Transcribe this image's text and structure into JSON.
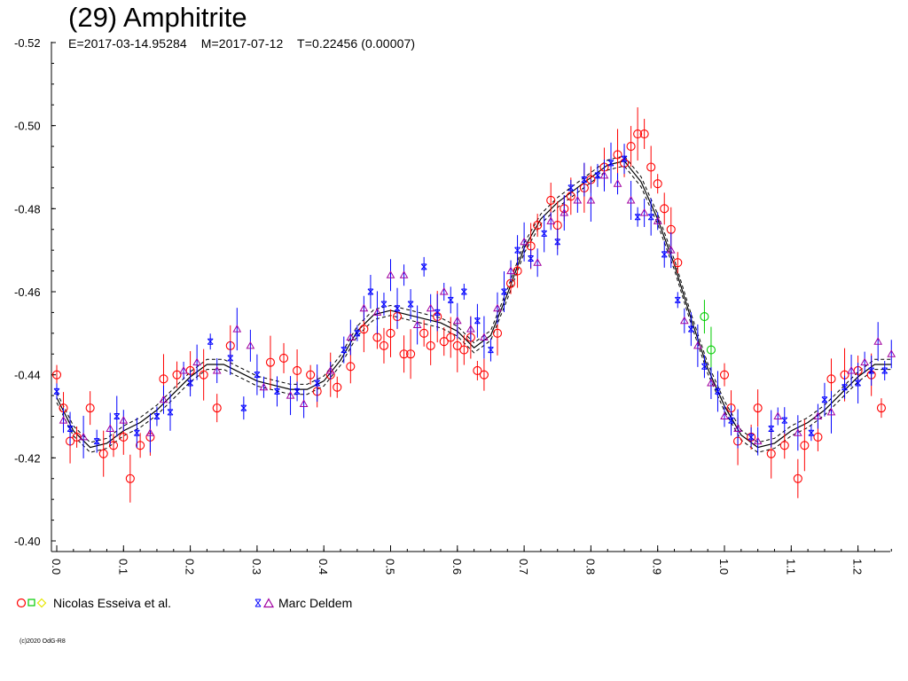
{
  "header": {
    "title": "(29) Amphitrite",
    "subtitle": "E=2017-03-14.95284    M=2017-07-12    T=0.22456 (0.00007)"
  },
  "footer": {
    "copyright": "(c)2020 OdG-R8"
  },
  "colors": {
    "esseiva_red": "#ff0000",
    "esseiva_green": "#00cc00",
    "esseiva_yellow": "#ffff00",
    "deldem_blue": "#0000ff",
    "deldem_purple": "#a000a0",
    "fit_line": "#000000"
  },
  "chart_data": {
    "type": "scatter",
    "xlim": [
      0.0,
      1.25
    ],
    "ylim": [
      -0.52,
      -0.4
    ],
    "x_ticks": [
      "0.0",
      "0.1",
      "0.2",
      "0.3",
      "0.4",
      "0.5",
      "0.6",
      "0.7",
      "0.8",
      "0.9",
      "1.0",
      "1.1",
      "1.2"
    ],
    "y_ticks": [
      "-0.52",
      "-0.50",
      "-0.48",
      "-0.46",
      "-0.44",
      "-0.42",
      "-0.40"
    ],
    "y_inverted": true,
    "grid": false,
    "legend_placement": "bottom",
    "fit_curve": {
      "x": [
        0.0,
        0.025,
        0.05,
        0.075,
        0.1,
        0.125,
        0.15,
        0.175,
        0.2,
        0.225,
        0.25,
        0.275,
        0.3,
        0.325,
        0.35,
        0.375,
        0.4,
        0.425,
        0.45,
        0.475,
        0.5,
        0.525,
        0.55,
        0.575,
        0.6,
        0.625,
        0.65,
        0.675,
        0.7,
        0.725,
        0.75,
        0.775,
        0.8,
        0.825,
        0.85,
        0.875,
        0.9,
        0.925,
        0.95,
        0.975,
        1.0,
        1.025,
        1.05,
        1.075,
        1.1,
        1.125,
        1.15,
        1.175,
        1.2,
        1.225,
        1.25
      ],
      "y": [
        -0.4345,
        -0.4265,
        -0.4225,
        -0.4235,
        -0.4265,
        -0.4285,
        -0.4315,
        -0.4355,
        -0.4395,
        -0.4425,
        -0.4425,
        -0.4405,
        -0.4385,
        -0.4375,
        -0.4365,
        -0.4365,
        -0.4385,
        -0.4435,
        -0.4505,
        -0.4545,
        -0.4555,
        -0.4545,
        -0.4535,
        -0.4525,
        -0.4505,
        -0.4465,
        -0.4495,
        -0.4595,
        -0.4705,
        -0.4775,
        -0.4815,
        -0.4845,
        -0.4875,
        -0.4905,
        -0.4915,
        -0.4865,
        -0.4775,
        -0.4665,
        -0.4535,
        -0.4415,
        -0.4325,
        -0.4255,
        -0.4225,
        -0.4235,
        -0.4265,
        -0.4285,
        -0.4315,
        -0.4355,
        -0.4395,
        -0.4425,
        -0.4425
      ]
    },
    "series": [
      {
        "name": "Nicolas Esseiva et al.",
        "marker": "circle",
        "points": [
          [
            0.0,
            -0.44
          ],
          [
            0.01,
            -0.432
          ],
          [
            0.02,
            -0.424
          ],
          [
            0.03,
            -0.425
          ],
          [
            0.05,
            -0.432
          ],
          [
            0.07,
            -0.421
          ],
          [
            0.085,
            -0.423
          ],
          [
            0.1,
            -0.425
          ],
          [
            0.11,
            -0.415
          ],
          [
            0.125,
            -0.423
          ],
          [
            0.14,
            -0.425
          ],
          [
            0.16,
            -0.439
          ],
          [
            0.18,
            -0.44
          ],
          [
            0.2,
            -0.441
          ],
          [
            0.22,
            -0.44
          ],
          [
            0.24,
            -0.432
          ],
          [
            0.26,
            -0.447
          ],
          [
            0.32,
            -0.443
          ],
          [
            0.34,
            -0.444
          ],
          [
            0.36,
            -0.441
          ],
          [
            0.38,
            -0.44
          ],
          [
            0.39,
            -0.436
          ],
          [
            0.41,
            -0.44
          ],
          [
            0.42,
            -0.437
          ],
          [
            0.44,
            -0.442
          ],
          [
            0.46,
            -0.451
          ],
          [
            0.48,
            -0.449
          ],
          [
            0.49,
            -0.447
          ],
          [
            0.5,
            -0.45
          ],
          [
            0.51,
            -0.454
          ],
          [
            0.52,
            -0.445
          ],
          [
            0.53,
            -0.445
          ],
          [
            0.55,
            -0.45
          ],
          [
            0.56,
            -0.447
          ],
          [
            0.57,
            -0.454
          ],
          [
            0.58,
            -0.448
          ],
          [
            0.59,
            -0.449
          ],
          [
            0.6,
            -0.447
          ],
          [
            0.61,
            -0.446
          ],
          [
            0.62,
            -0.449
          ],
          [
            0.63,
            -0.441
          ],
          [
            0.64,
            -0.44
          ],
          [
            0.66,
            -0.45
          ],
          [
            0.68,
            -0.462
          ],
          [
            0.69,
            -0.465
          ],
          [
            0.71,
            -0.471
          ],
          [
            0.72,
            -0.476
          ],
          [
            0.74,
            -0.482
          ],
          [
            0.75,
            -0.476
          ],
          [
            0.76,
            -0.48
          ],
          [
            0.77,
            -0.483
          ],
          [
            0.79,
            -0.485
          ],
          [
            0.8,
            -0.487
          ],
          [
            0.82,
            -0.49
          ],
          [
            0.84,
            -0.493
          ],
          [
            0.85,
            -0.491
          ],
          [
            0.86,
            -0.495
          ],
          [
            0.87,
            -0.498
          ],
          [
            0.88,
            -0.498
          ],
          [
            0.89,
            -0.49
          ],
          [
            0.9,
            -0.486
          ],
          [
            0.91,
            -0.48
          ],
          [
            0.92,
            -0.475
          ],
          [
            0.93,
            -0.467
          ],
          [
            0.97,
            -0.454
          ],
          [
            0.98,
            -0.446
          ],
          [
            1.0,
            -0.44
          ],
          [
            1.01,
            -0.432
          ],
          [
            1.02,
            -0.424
          ],
          [
            1.04,
            -0.425
          ],
          [
            1.05,
            -0.432
          ],
          [
            1.07,
            -0.421
          ],
          [
            1.09,
            -0.423
          ],
          [
            1.11,
            -0.415
          ],
          [
            1.12,
            -0.423
          ],
          [
            1.14,
            -0.425
          ],
          [
            1.16,
            -0.439
          ],
          [
            1.18,
            -0.44
          ],
          [
            1.2,
            -0.441
          ],
          [
            1.22,
            -0.44
          ],
          [
            1.235,
            -0.432
          ]
        ]
      },
      {
        "name": "Marc Deldem",
        "marker": "cross-triangle",
        "points": [
          [
            0.0,
            -0.436
          ],
          [
            0.01,
            -0.429
          ],
          [
            0.02,
            -0.427
          ],
          [
            0.04,
            -0.425
          ],
          [
            0.06,
            -0.424
          ],
          [
            0.08,
            -0.427
          ],
          [
            0.09,
            -0.43
          ],
          [
            0.1,
            -0.429
          ],
          [
            0.12,
            -0.426
          ],
          [
            0.14,
            -0.426
          ],
          [
            0.15,
            -0.43
          ],
          [
            0.16,
            -0.434
          ],
          [
            0.17,
            -0.431
          ],
          [
            0.19,
            -0.441
          ],
          [
            0.2,
            -0.438
          ],
          [
            0.21,
            -0.443
          ],
          [
            0.23,
            -0.448
          ],
          [
            0.24,
            -0.441
          ],
          [
            0.26,
            -0.444
          ],
          [
            0.27,
            -0.451
          ],
          [
            0.28,
            -0.432
          ],
          [
            0.29,
            -0.447
          ],
          [
            0.3,
            -0.44
          ],
          [
            0.31,
            -0.437
          ],
          [
            0.33,
            -0.436
          ],
          [
            0.35,
            -0.435
          ],
          [
            0.36,
            -0.436
          ],
          [
            0.37,
            -0.433
          ],
          [
            0.39,
            -0.438
          ],
          [
            0.41,
            -0.441
          ],
          [
            0.43,
            -0.446
          ],
          [
            0.44,
            -0.449
          ],
          [
            0.45,
            -0.45
          ],
          [
            0.46,
            -0.456
          ],
          [
            0.47,
            -0.46
          ],
          [
            0.48,
            -0.455
          ],
          [
            0.49,
            -0.457
          ],
          [
            0.5,
            -0.464
          ],
          [
            0.51,
            -0.456
          ],
          [
            0.52,
            -0.464
          ],
          [
            0.53,
            -0.457
          ],
          [
            0.54,
            -0.452
          ],
          [
            0.55,
            -0.466
          ],
          [
            0.56,
            -0.456
          ],
          [
            0.57,
            -0.455
          ],
          [
            0.58,
            -0.46
          ],
          [
            0.59,
            -0.458
          ],
          [
            0.6,
            -0.453
          ],
          [
            0.61,
            -0.46
          ],
          [
            0.62,
            -0.451
          ],
          [
            0.63,
            -0.453
          ],
          [
            0.64,
            -0.449
          ],
          [
            0.65,
            -0.446
          ],
          [
            0.66,
            -0.456
          ],
          [
            0.67,
            -0.46
          ],
          [
            0.68,
            -0.465
          ],
          [
            0.69,
            -0.47
          ],
          [
            0.7,
            -0.472
          ],
          [
            0.71,
            -0.468
          ],
          [
            0.72,
            -0.467
          ],
          [
            0.73,
            -0.474
          ],
          [
            0.74,
            -0.477
          ],
          [
            0.75,
            -0.472
          ],
          [
            0.76,
            -0.479
          ],
          [
            0.77,
            -0.485
          ],
          [
            0.78,
            -0.482
          ],
          [
            0.79,
            -0.487
          ],
          [
            0.8,
            -0.482
          ],
          [
            0.81,
            -0.488
          ],
          [
            0.82,
            -0.488
          ],
          [
            0.83,
            -0.491
          ],
          [
            0.84,
            -0.486
          ],
          [
            0.85,
            -0.492
          ],
          [
            0.86,
            -0.482
          ],
          [
            0.87,
            -0.478
          ],
          [
            0.88,
            -0.479
          ],
          [
            0.89,
            -0.478
          ],
          [
            0.9,
            -0.477
          ],
          [
            0.91,
            -0.469
          ],
          [
            0.92,
            -0.47
          ],
          [
            0.93,
            -0.458
          ],
          [
            0.94,
            -0.453
          ],
          [
            0.95,
            -0.451
          ],
          [
            0.96,
            -0.447
          ],
          [
            0.97,
            -0.442
          ],
          [
            0.98,
            -0.438
          ],
          [
            0.99,
            -0.436
          ],
          [
            1.0,
            -0.43
          ],
          [
            1.01,
            -0.429
          ],
          [
            1.02,
            -0.427
          ],
          [
            1.04,
            -0.425
          ],
          [
            1.05,
            -0.424
          ],
          [
            1.07,
            -0.427
          ],
          [
            1.08,
            -0.43
          ],
          [
            1.09,
            -0.429
          ],
          [
            1.11,
            -0.426
          ],
          [
            1.13,
            -0.426
          ],
          [
            1.14,
            -0.43
          ],
          [
            1.15,
            -0.434
          ],
          [
            1.16,
            -0.431
          ],
          [
            1.18,
            -0.437
          ],
          [
            1.19,
            -0.441
          ],
          [
            1.2,
            -0.438
          ],
          [
            1.21,
            -0.443
          ],
          [
            1.22,
            -0.441
          ],
          [
            1.23,
            -0.448
          ],
          [
            1.24,
            -0.441
          ],
          [
            1.25,
            -0.445
          ]
        ]
      }
    ]
  },
  "legend": {
    "items": [
      {
        "label": "Nicolas Esseiva et al."
      },
      {
        "label": "Marc Deldem"
      }
    ]
  }
}
